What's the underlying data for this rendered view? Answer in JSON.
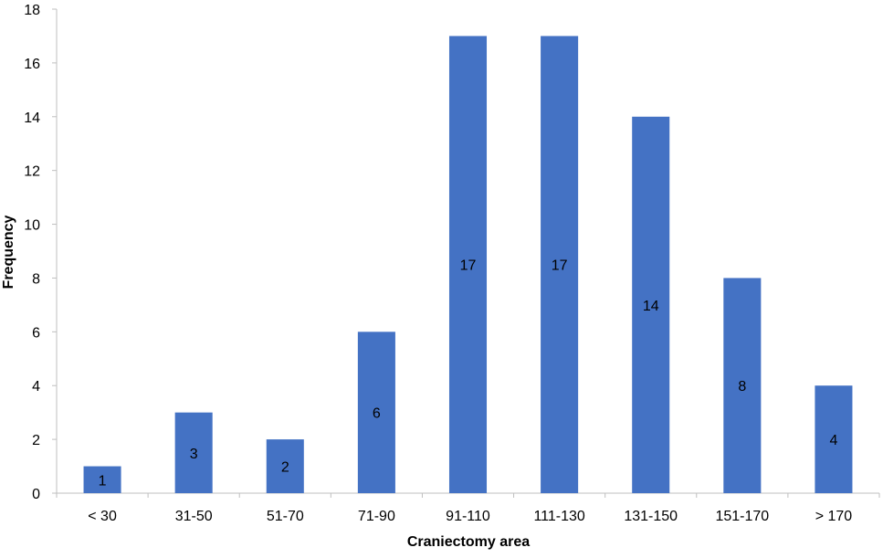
{
  "chart_data": {
    "type": "bar",
    "title": "",
    "xlabel": "Craniectomy area",
    "ylabel": "Frequency",
    "categories": [
      "< 30",
      "31-50",
      "51-70",
      "71-90",
      "91-110",
      "111-130",
      "131-150",
      "151-170",
      "> 170"
    ],
    "values": [
      1,
      3,
      2,
      6,
      17,
      17,
      14,
      8,
      4
    ],
    "ylim": [
      0,
      18
    ],
    "yticks": [
      0,
      2,
      4,
      6,
      8,
      10,
      12,
      14,
      16,
      18
    ],
    "grid": false,
    "legend": "none",
    "bar_color": "#4472C4",
    "data_labels": "center"
  }
}
